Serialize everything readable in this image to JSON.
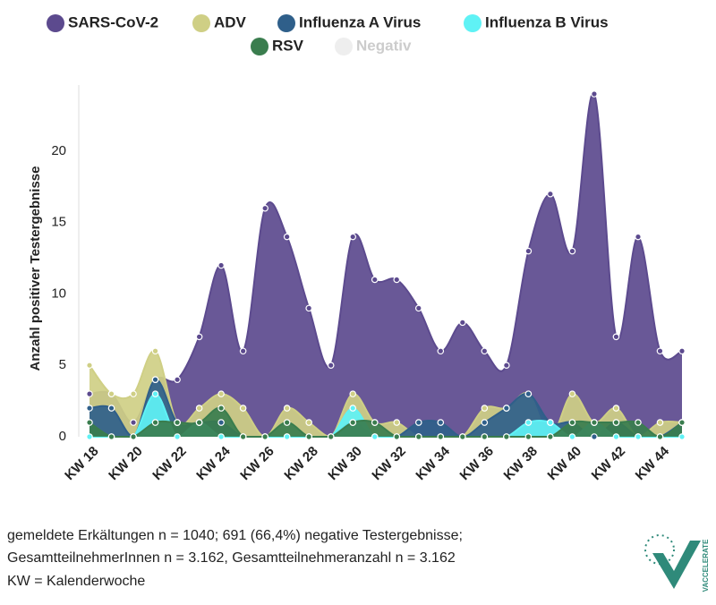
{
  "chart_data": {
    "type": "areaspline",
    "y_axis_label": "Anzahl positiver Testergebnisse",
    "categories": [
      "KW 18",
      null,
      "KW 20",
      null,
      "KW 22",
      null,
      "KW 24",
      null,
      "KW 26",
      null,
      "KW 28",
      null,
      "KW 30",
      null,
      "KW 32",
      null,
      "KW 34",
      null,
      "KW 36",
      null,
      "KW 38",
      null,
      "KW 40",
      null,
      "KW 42",
      null,
      "KW 44",
      null
    ],
    "series": [
      {
        "name": "SARS-CoV-2",
        "color": "#5c4a8e",
        "values": [
          3,
          3,
          1,
          4,
          4,
          7,
          12,
          6,
          16,
          14,
          9,
          5,
          14,
          11,
          11,
          9,
          6,
          8,
          6,
          5,
          13,
          17,
          13,
          24,
          7,
          14,
          6,
          6
        ]
      },
      {
        "name": "ADV",
        "color": "#cfcf85",
        "values": [
          5,
          3,
          3,
          6,
          1,
          2,
          3,
          2,
          0,
          2,
          1,
          0,
          3,
          1,
          1,
          0,
          0,
          0,
          2,
          2,
          3,
          0,
          3,
          1,
          2,
          0,
          1,
          1
        ]
      },
      {
        "name": "Influenza A Virus",
        "color": "#2f5f8a",
        "values": [
          2,
          2,
          0,
          4,
          1,
          1,
          1,
          0,
          0,
          0,
          0,
          0,
          1,
          0,
          0,
          1,
          1,
          0,
          1,
          2,
          3,
          1,
          1,
          0,
          1,
          0,
          0,
          1
        ]
      },
      {
        "name": "Influenza B Virus",
        "color": "#5ff2f5",
        "values": [
          0,
          0,
          0,
          3,
          0,
          1,
          0,
          0,
          0,
          0,
          0,
          0,
          2,
          0,
          0,
          0,
          0,
          0,
          0,
          0,
          1,
          1,
          0,
          1,
          0,
          0,
          0,
          0
        ]
      },
      {
        "name": "RSV",
        "color": "#3a7d4e",
        "values": [
          1,
          0,
          0,
          1,
          1,
          1,
          2,
          0,
          0,
          1,
          0,
          0,
          1,
          1,
          0,
          0,
          0,
          0,
          0,
          0,
          0,
          0,
          1,
          1,
          1,
          1,
          0,
          1
        ]
      }
    ],
    "hidden_legend": {
      "name": "Negativ",
      "color": "#eeeeee"
    },
    "ylim": [
      0,
      24
    ],
    "yticks": [
      0,
      5,
      10,
      15,
      20
    ],
    "grid": false,
    "footer": [
      "gemeldete Erkältungen n = 1040; 691 (66,4%) negative Testergebnisse;",
      "GesamtteilnehmerInnen n = 3.162, Gesamtteilnehmeranzahl n = 3.162",
      "KW = Kalenderwoche"
    ],
    "logo": "VACCELERATE"
  }
}
